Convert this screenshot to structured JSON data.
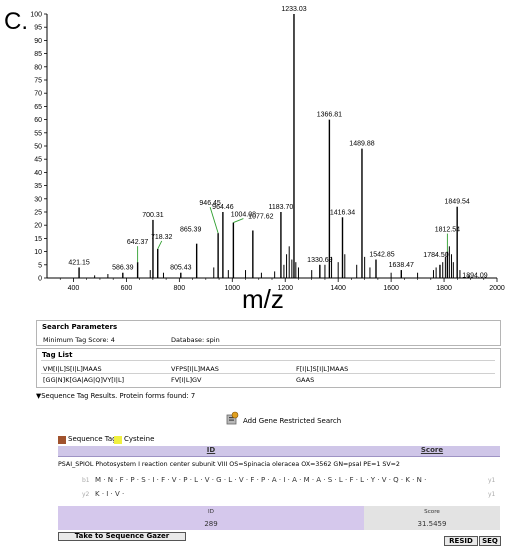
{
  "panel_label": "C.",
  "spectrum": {
    "x_axis_label": "m/z",
    "y_ticks": [
      "0",
      "5",
      "10",
      "15",
      "20",
      "25",
      "30",
      "35",
      "40",
      "45",
      "50",
      "55",
      "60",
      "65",
      "70",
      "75",
      "80",
      "85",
      "90",
      "95",
      "100"
    ],
    "x_ticks": [
      "400",
      "600",
      "800",
      "1000",
      "1200",
      "1400",
      "1600",
      "1800",
      "2000"
    ]
  },
  "chart_data": {
    "type": "bar",
    "title": "",
    "xlabel": "m/z",
    "ylabel": "",
    "xlim": [
      300,
      2000
    ],
    "ylim": [
      0,
      100
    ],
    "labeled_peaks": [
      {
        "mz": 421.15,
        "intensity": 4,
        "label": "421.15"
      },
      {
        "mz": 586.39,
        "intensity": 2,
        "label": "586.39"
      },
      {
        "mz": 642.37,
        "intensity": 6,
        "label": "642.37"
      },
      {
        "mz": 700.31,
        "intensity": 22,
        "label": "700.31"
      },
      {
        "mz": 718.32,
        "intensity": 11,
        "label": "718.32"
      },
      {
        "mz": 805.43,
        "intensity": 2,
        "label": "805.43"
      },
      {
        "mz": 865.39,
        "intensity": 13,
        "label": "865.39"
      },
      {
        "mz": 946.45,
        "intensity": 17,
        "label": "946.45"
      },
      {
        "mz": 964.46,
        "intensity": 25,
        "label": "964.46"
      },
      {
        "mz": 1004.08,
        "intensity": 21,
        "label": "1004.08"
      },
      {
        "mz": 1077.62,
        "intensity": 18,
        "label": "1077.62"
      },
      {
        "mz": 1183.7,
        "intensity": 25,
        "label": "1183.70"
      },
      {
        "mz": 1233.03,
        "intensity": 100,
        "label": "1233.03"
      },
      {
        "mz": 1330.69,
        "intensity": 5,
        "label": "1330.69"
      },
      {
        "mz": 1366.81,
        "intensity": 60,
        "label": "1366.81"
      },
      {
        "mz": 1416.34,
        "intensity": 23,
        "label": "1416.34"
      },
      {
        "mz": 1489.88,
        "intensity": 49,
        "label": "1489.88"
      },
      {
        "mz": 1542.85,
        "intensity": 7,
        "label": "1542.85"
      },
      {
        "mz": 1638.47,
        "intensity": 3,
        "label": "1638.47"
      },
      {
        "mz": 1784.5,
        "intensity": 5,
        "label": "1784.50"
      },
      {
        "mz": 1812.54,
        "intensity": 10,
        "label": "1812.54"
      },
      {
        "mz": 1849.54,
        "intensity": 27,
        "label": "1849.54"
      },
      {
        "mz": 1894.09,
        "intensity": 1,
        "label": "1894.09"
      }
    ],
    "minor_peaks": [
      {
        "mz": 480,
        "intensity": 1
      },
      {
        "mz": 530,
        "intensity": 1.5
      },
      {
        "mz": 690,
        "intensity": 3
      },
      {
        "mz": 740,
        "intensity": 2
      },
      {
        "mz": 930,
        "intensity": 4
      },
      {
        "mz": 985,
        "intensity": 3
      },
      {
        "mz": 1050,
        "intensity": 3
      },
      {
        "mz": 1110,
        "intensity": 2
      },
      {
        "mz": 1160,
        "intensity": 2.5
      },
      {
        "mz": 1195,
        "intensity": 5
      },
      {
        "mz": 1205,
        "intensity": 9
      },
      {
        "mz": 1215,
        "intensity": 12
      },
      {
        "mz": 1225,
        "intensity": 7
      },
      {
        "mz": 1240,
        "intensity": 6
      },
      {
        "mz": 1250,
        "intensity": 4
      },
      {
        "mz": 1300,
        "intensity": 3
      },
      {
        "mz": 1350,
        "intensity": 5
      },
      {
        "mz": 1375,
        "intensity": 8
      },
      {
        "mz": 1400,
        "intensity": 6
      },
      {
        "mz": 1425,
        "intensity": 9
      },
      {
        "mz": 1470,
        "intensity": 5
      },
      {
        "mz": 1500,
        "intensity": 8
      },
      {
        "mz": 1520,
        "intensity": 4
      },
      {
        "mz": 1600,
        "intensity": 2
      },
      {
        "mz": 1700,
        "intensity": 2
      },
      {
        "mz": 1760,
        "intensity": 3
      },
      {
        "mz": 1770,
        "intensity": 4
      },
      {
        "mz": 1795,
        "intensity": 6
      },
      {
        "mz": 1805,
        "intensity": 8
      },
      {
        "mz": 1820,
        "intensity": 12
      },
      {
        "mz": 1828,
        "intensity": 9
      },
      {
        "mz": 1835,
        "intensity": 6
      },
      {
        "mz": 1860,
        "intensity": 3
      }
    ],
    "highlighted_peaks": [
      "642.37",
      "718.32",
      "946.45",
      "1004.08",
      "1812.54"
    ],
    "colors": {
      "peak": "#000000",
      "highlight": "#2e9e2e"
    }
  },
  "search_parameters": {
    "title": "Search Parameters",
    "min_tag_score": "Minimum Tag Score: 4",
    "database": "Database: spin"
  },
  "tag_list": {
    "title": "Tag List",
    "tags": [
      "VM[I|L]S[I|L]MAAS",
      "VFPS[I|L]MAAS",
      "F[I|L]S[I|L]MAAS",
      "[GG|N]K[GA|AG|Q]VY[I|L]",
      "FV[I|L]GV",
      "GAAS"
    ]
  },
  "results_toggle": "Sequence Tag Results. Protein forms found: 7",
  "gene_restricted_label": "Add Gene Restricted Search",
  "legend": [
    {
      "label": "Sequence Tag",
      "color": "#a0522d"
    },
    {
      "label": "Cysteine",
      "color": "#f0f040"
    }
  ],
  "table": {
    "id_header": "ID",
    "score_header": "Score",
    "protein_description": "PSAI_SPIOL Photosystem I reaction center subunit VIII OS=Spinacia oleracea OX=3562 GN=psaI PE=1 SV=2",
    "ion_left": "b1",
    "ion_right": "y1",
    "ion_left2": "y2",
    "ion_right2": "y1",
    "sequence_row1": "M · N · F · P · S · I · F · V · P · L · V · G · L · V · F · P · A · I · A · M · A · S · L · F · L · Y · V · Q · K · N ·",
    "sequence_row2": "K · I · V ·",
    "result_id_label": "ID",
    "result_id": "289",
    "result_score_label": "Score",
    "result_score": "31.5459"
  },
  "buttons": {
    "gazer": "Take to Sequence Gazer",
    "resid": "RESID",
    "seq": "SEQ"
  }
}
